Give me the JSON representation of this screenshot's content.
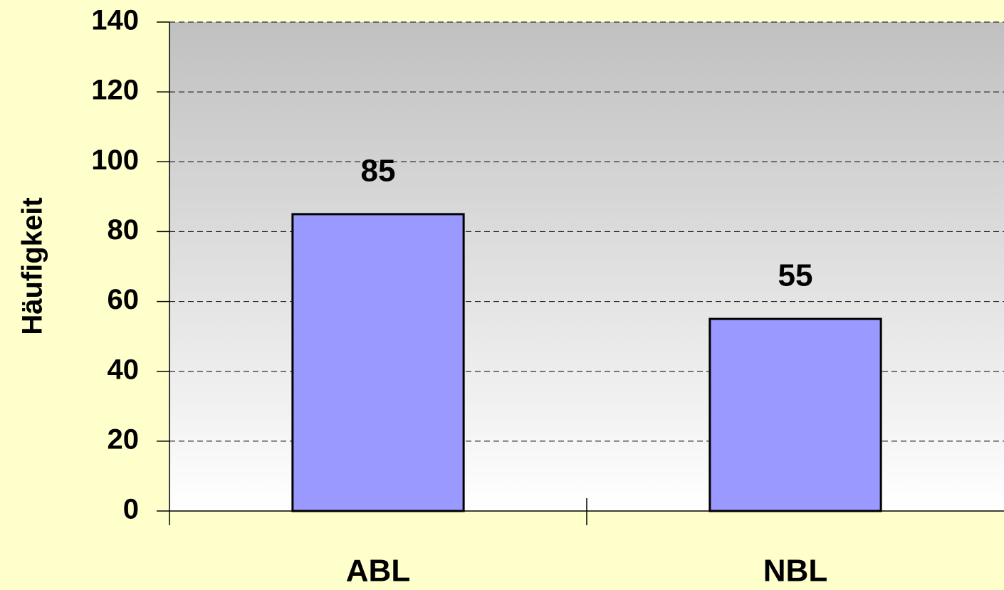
{
  "chart_data": {
    "type": "bar",
    "y_label": "Häufigkeit",
    "categories": [
      "ABL",
      "NBL"
    ],
    "values": [
      85,
      55
    ],
    "color": "#9999ff",
    "ylim": [
      0,
      140
    ],
    "yticks": [
      0,
      20,
      40,
      60,
      80,
      100,
      120,
      140
    ],
    "grid": true
  }
}
